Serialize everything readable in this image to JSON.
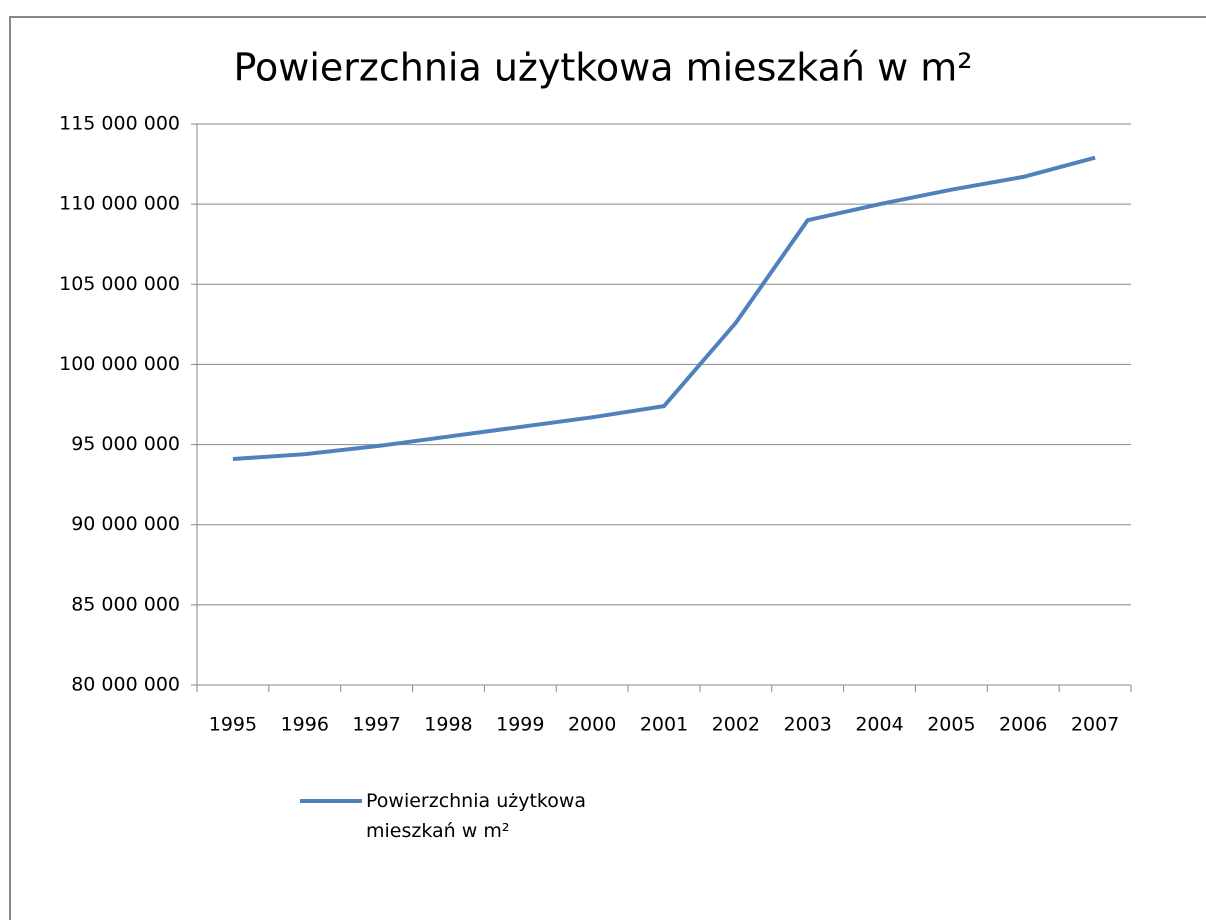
{
  "chart_data": {
    "type": "line",
    "title": "Powierzchnia użytkowa mieszkań w m²",
    "categories": [
      "1995",
      "1996",
      "1997",
      "1998",
      "1999",
      "2000",
      "2001",
      "2002",
      "2003",
      "2004",
      "2005",
      "2006",
      "2007"
    ],
    "series": [
      {
        "name": "Powierzchnia użytkowa mieszkań w m²",
        "color": "#4f81bd",
        "values": [
          94100000,
          94400000,
          94900000,
          95500000,
          96100000,
          96700000,
          97400000,
          102600000,
          109000000,
          110000000,
          110900000,
          111700000,
          112900000
        ]
      }
    ],
    "ylim": [
      80000000,
      115000000
    ],
    "yticks": [
      {
        "value": 80000000,
        "label": "80 000 000"
      },
      {
        "value": 85000000,
        "label": "85 000 000"
      },
      {
        "value": 90000000,
        "label": "90 000 000"
      },
      {
        "value": 95000000,
        "label": "95 000 000"
      },
      {
        "value": 100000000,
        "label": "100 000 000"
      },
      {
        "value": 105000000,
        "label": "105 000 000"
      },
      {
        "value": 110000000,
        "label": "110 000 000"
      },
      {
        "value": 115000000,
        "label": "115 000 000"
      }
    ],
    "grid": true,
    "legend": "bottom"
  }
}
